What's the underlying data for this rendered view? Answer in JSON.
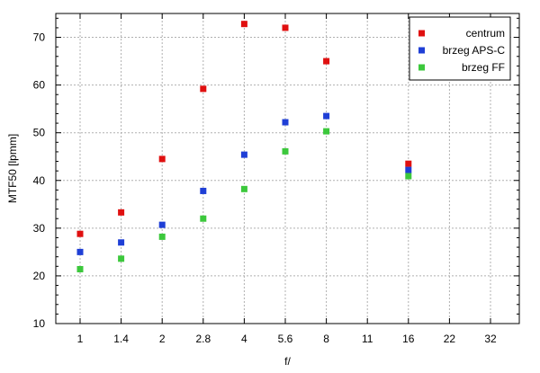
{
  "chart_data": {
    "type": "scatter",
    "xlabel": "f/",
    "ylabel": "MTF50 [lpmm]",
    "x_categories": [
      "1",
      "1.4",
      "2",
      "2.8",
      "4",
      "5.6",
      "8",
      "11",
      "16",
      "22",
      "32"
    ],
    "y_ticks": [
      10,
      20,
      30,
      40,
      50,
      60,
      70
    ],
    "ylim": [
      10,
      75
    ],
    "grid": true,
    "legend_position": "top-right",
    "series": [
      {
        "name": "centrum",
        "color": "#e01010",
        "points": [
          {
            "x": "1",
            "y": 28.8
          },
          {
            "x": "1.4",
            "y": 33.3
          },
          {
            "x": "2",
            "y": 44.5
          },
          {
            "x": "2.8",
            "y": 59.2
          },
          {
            "x": "4",
            "y": 72.8
          },
          {
            "x": "5.6",
            "y": 72.0
          },
          {
            "x": "8",
            "y": 65.0
          },
          {
            "x": "16",
            "y": 43.5
          }
        ]
      },
      {
        "name": "brzeg APS-C",
        "color": "#1f3fd6",
        "points": [
          {
            "x": "1",
            "y": 25.0
          },
          {
            "x": "1.4",
            "y": 27.0
          },
          {
            "x": "2",
            "y": 30.7
          },
          {
            "x": "2.8",
            "y": 37.8
          },
          {
            "x": "4",
            "y": 45.4
          },
          {
            "x": "5.6",
            "y": 52.2
          },
          {
            "x": "8",
            "y": 53.5
          },
          {
            "x": "16",
            "y": 42.2
          }
        ]
      },
      {
        "name": "brzeg FF",
        "color": "#3cc83c",
        "points": [
          {
            "x": "1",
            "y": 21.4
          },
          {
            "x": "1.4",
            "y": 23.6
          },
          {
            "x": "2",
            "y": 28.2
          },
          {
            "x": "2.8",
            "y": 32.0
          },
          {
            "x": "4",
            "y": 38.2
          },
          {
            "x": "5.6",
            "y": 46.1
          },
          {
            "x": "8",
            "y": 50.3
          },
          {
            "x": "16",
            "y": 40.9
          }
        ]
      }
    ]
  }
}
